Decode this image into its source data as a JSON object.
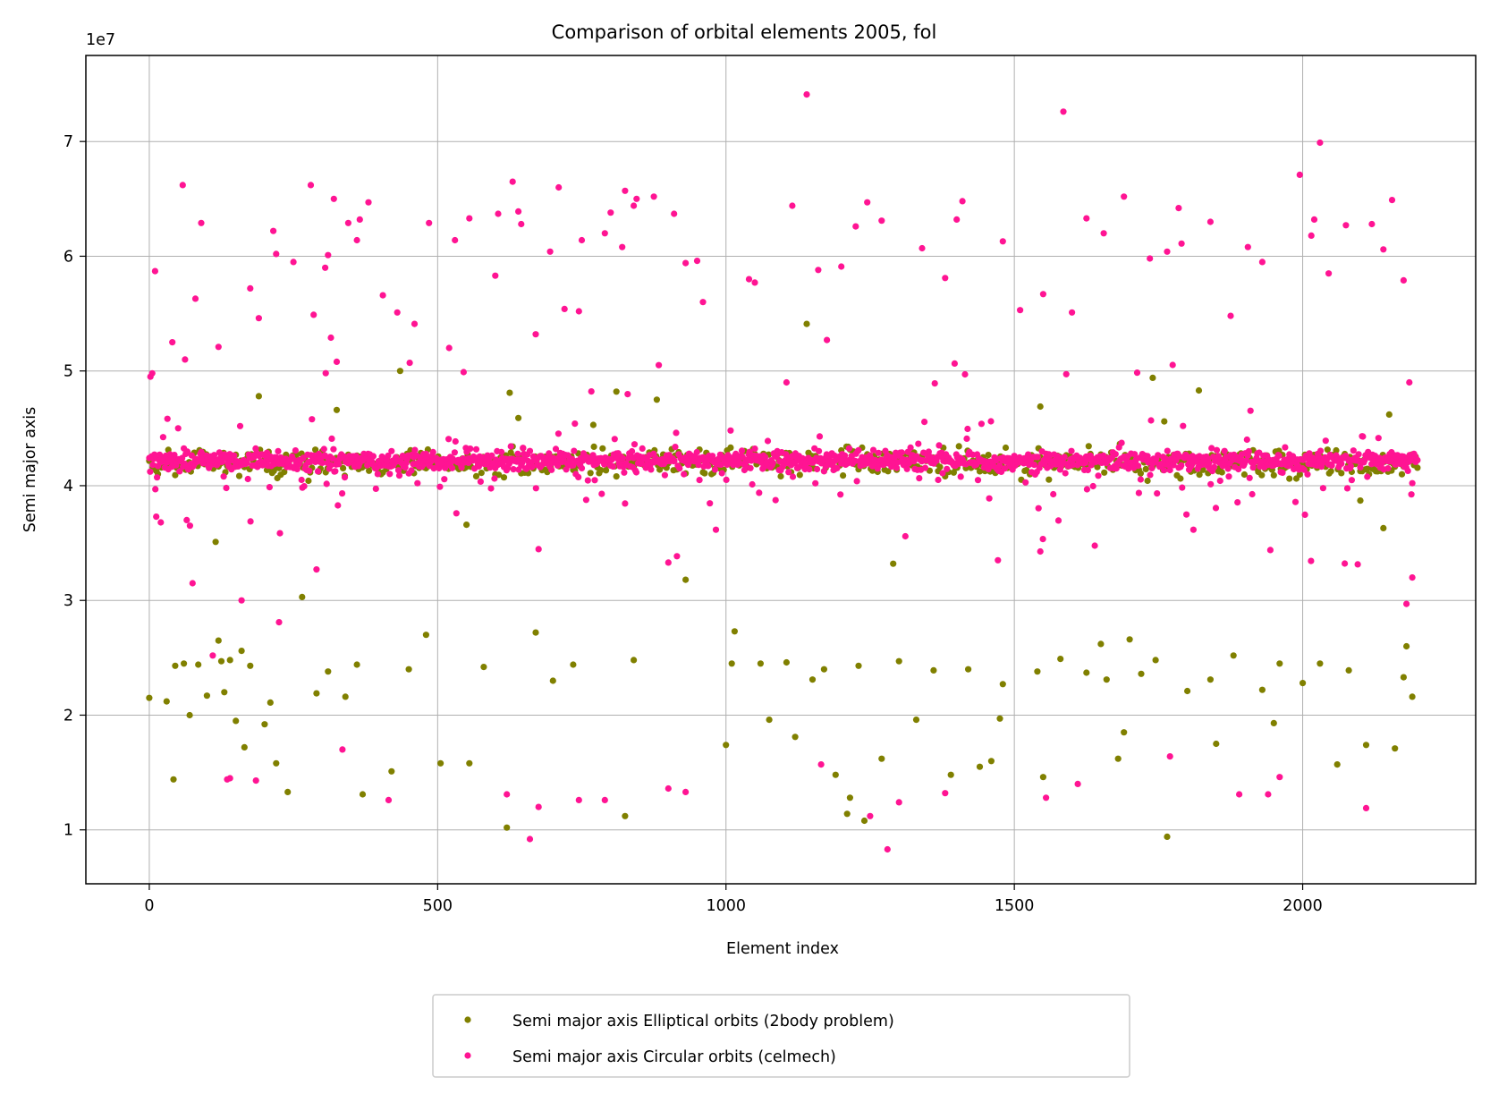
{
  "chart_data": {
    "type": "scatter",
    "title": "Comparison of orbital elements 2005, fol",
    "xlabel": "Element index",
    "ylabel": "Semi major axis",
    "y_offset_label": "1e7",
    "xlim": [
      -110,
      2300
    ],
    "ylim": [
      5300000,
      77500000
    ],
    "xticks": [
      0,
      500,
      1000,
      1500,
      2000
    ],
    "xtick_labels": [
      "0",
      "500",
      "1000",
      "1500",
      "2000"
    ],
    "yticks": [
      10000000,
      20000000,
      30000000,
      40000000,
      50000000,
      60000000,
      70000000
    ],
    "ytick_labels": [
      "1",
      "2",
      "3",
      "4",
      "5",
      "6",
      "7"
    ],
    "grid": true,
    "legend_position": "below plot, centered",
    "n_points_per_series": 2200,
    "series": [
      {
        "name": "Semi major axis Elliptical orbits (2body problem)",
        "color": "#808000",
        "points": [
          [
            0,
            21500000
          ],
          [
            30,
            21200000
          ],
          [
            42,
            14400000
          ],
          [
            45,
            24300000
          ],
          [
            60,
            24500000
          ],
          [
            70,
            20000000
          ],
          [
            85,
            24400000
          ],
          [
            100,
            21700000
          ],
          [
            115,
            35100000
          ],
          [
            120,
            26500000
          ],
          [
            125,
            24700000
          ],
          [
            130,
            22000000
          ],
          [
            140,
            24800000
          ],
          [
            150,
            19500000
          ],
          [
            160,
            25600000
          ],
          [
            165,
            17200000
          ],
          [
            175,
            24300000
          ],
          [
            190,
            47800000
          ],
          [
            200,
            19200000
          ],
          [
            210,
            21100000
          ],
          [
            220,
            15800000
          ],
          [
            240,
            13300000
          ],
          [
            265,
            30300000
          ],
          [
            290,
            21900000
          ],
          [
            310,
            23800000
          ],
          [
            325,
            46600000
          ],
          [
            340,
            21600000
          ],
          [
            360,
            24400000
          ],
          [
            370,
            13100000
          ],
          [
            420,
            15100000
          ],
          [
            435,
            50000000
          ],
          [
            450,
            24000000
          ],
          [
            480,
            27000000
          ],
          [
            505,
            15800000
          ],
          [
            550,
            36600000
          ],
          [
            555,
            15800000
          ],
          [
            580,
            24200000
          ],
          [
            620,
            10200000
          ],
          [
            625,
            48100000
          ],
          [
            640,
            45900000
          ],
          [
            670,
            27200000
          ],
          [
            700,
            23000000
          ],
          [
            735,
            24400000
          ],
          [
            770,
            45300000
          ],
          [
            810,
            48200000
          ],
          [
            825,
            11200000
          ],
          [
            840,
            24800000
          ],
          [
            880,
            47500000
          ],
          [
            930,
            31800000
          ],
          [
            1000,
            17400000
          ],
          [
            1010,
            24500000
          ],
          [
            1015,
            27300000
          ],
          [
            1060,
            24500000
          ],
          [
            1075,
            19600000
          ],
          [
            1105,
            24600000
          ],
          [
            1120,
            18100000
          ],
          [
            1140,
            54100000
          ],
          [
            1150,
            23100000
          ],
          [
            1170,
            24000000
          ],
          [
            1190,
            14800000
          ],
          [
            1210,
            11400000
          ],
          [
            1215,
            12800000
          ],
          [
            1230,
            24300000
          ],
          [
            1240,
            10800000
          ],
          [
            1270,
            16200000
          ],
          [
            1290,
            33200000
          ],
          [
            1300,
            24700000
          ],
          [
            1330,
            19600000
          ],
          [
            1360,
            23900000
          ],
          [
            1390,
            14800000
          ],
          [
            1420,
            24000000
          ],
          [
            1440,
            15500000
          ],
          [
            1460,
            16000000
          ],
          [
            1475,
            19700000
          ],
          [
            1480,
            22700000
          ],
          [
            1540,
            23800000
          ],
          [
            1545,
            46900000
          ],
          [
            1550,
            14600000
          ],
          [
            1580,
            24900000
          ],
          [
            1625,
            23700000
          ],
          [
            1650,
            26200000
          ],
          [
            1660,
            23100000
          ],
          [
            1680,
            16200000
          ],
          [
            1690,
            18500000
          ],
          [
            1700,
            26600000
          ],
          [
            1720,
            23600000
          ],
          [
            1740,
            49400000
          ],
          [
            1745,
            24800000
          ],
          [
            1760,
            45600000
          ],
          [
            1765,
            9400000
          ],
          [
            1800,
            22100000
          ],
          [
            1820,
            48300000
          ],
          [
            1840,
            23100000
          ],
          [
            1850,
            17500000
          ],
          [
            1880,
            25200000
          ],
          [
            1930,
            22200000
          ],
          [
            1950,
            19300000
          ],
          [
            1960,
            24500000
          ],
          [
            2000,
            22800000
          ],
          [
            2030,
            24500000
          ],
          [
            2060,
            15700000
          ],
          [
            2080,
            23900000
          ],
          [
            2100,
            38700000
          ],
          [
            2110,
            17400000
          ],
          [
            2140,
            36300000
          ],
          [
            2150,
            46200000
          ],
          [
            2160,
            17100000
          ],
          [
            2175,
            23300000
          ],
          [
            2180,
            26000000
          ],
          [
            2190,
            21600000
          ]
        ]
      },
      {
        "name": "Semi major axis Circular orbits (celmech)",
        "color": "#ff1493",
        "points": [
          [
            2,
            49500000
          ],
          [
            5,
            49800000
          ],
          [
            10,
            58700000
          ],
          [
            12,
            37300000
          ],
          [
            20,
            36800000
          ],
          [
            40,
            52500000
          ],
          [
            50,
            45000000
          ],
          [
            58,
            66200000
          ],
          [
            62,
            51000000
          ],
          [
            65,
            37000000
          ],
          [
            75,
            31500000
          ],
          [
            80,
            56300000
          ],
          [
            90,
            62900000
          ],
          [
            110,
            25200000
          ],
          [
            120,
            52100000
          ],
          [
            135,
            14400000
          ],
          [
            160,
            30000000
          ],
          [
            175,
            57200000
          ],
          [
            190,
            54600000
          ],
          [
            215,
            62200000
          ],
          [
            220,
            60200000
          ],
          [
            225,
            28100000
          ],
          [
            250,
            59500000
          ],
          [
            280,
            66200000
          ],
          [
            285,
            54900000
          ],
          [
            290,
            32700000
          ],
          [
            305,
            59000000
          ],
          [
            310,
            60100000
          ],
          [
            315,
            52900000
          ],
          [
            320,
            65000000
          ],
          [
            325,
            50800000
          ],
          [
            335,
            17000000
          ],
          [
            345,
            62900000
          ],
          [
            360,
            61400000
          ],
          [
            365,
            63200000
          ],
          [
            380,
            64700000
          ],
          [
            405,
            56600000
          ],
          [
            415,
            12600000
          ],
          [
            430,
            55100000
          ],
          [
            460,
            54100000
          ],
          [
            485,
            62900000
          ],
          [
            520,
            52000000
          ],
          [
            530,
            61400000
          ],
          [
            545,
            49900000
          ],
          [
            555,
            63300000
          ],
          [
            600,
            58300000
          ],
          [
            605,
            63700000
          ],
          [
            630,
            66500000
          ],
          [
            640,
            63900000
          ],
          [
            645,
            62800000
          ],
          [
            660,
            9200000
          ],
          [
            670,
            53200000
          ],
          [
            695,
            60400000
          ],
          [
            710,
            66000000
          ],
          [
            720,
            55400000
          ],
          [
            745,
            55200000
          ],
          [
            750,
            61400000
          ],
          [
            790,
            62000000
          ],
          [
            800,
            63800000
          ],
          [
            820,
            60800000
          ],
          [
            825,
            65700000
          ],
          [
            840,
            64400000
          ],
          [
            845,
            65000000
          ],
          [
            875,
            65200000
          ],
          [
            910,
            63700000
          ],
          [
            930,
            59400000
          ],
          [
            950,
            59600000
          ],
          [
            960,
            56000000
          ],
          [
            1040,
            58000000
          ],
          [
            1050,
            57700000
          ],
          [
            1105,
            49000000
          ],
          [
            1115,
            64400000
          ],
          [
            1140,
            74100000
          ],
          [
            1160,
            58800000
          ],
          [
            1175,
            52700000
          ],
          [
            1200,
            59100000
          ],
          [
            1225,
            62600000
          ],
          [
            1245,
            64700000
          ],
          [
            1270,
            63100000
          ],
          [
            1280,
            8300000
          ],
          [
            1340,
            60700000
          ],
          [
            1380,
            58100000
          ],
          [
            1400,
            63200000
          ],
          [
            1410,
            64800000
          ],
          [
            1480,
            61300000
          ],
          [
            1510,
            55300000
          ],
          [
            1550,
            56700000
          ],
          [
            1585,
            72600000
          ],
          [
            1600,
            55100000
          ],
          [
            1625,
            63300000
          ],
          [
            1655,
            62000000
          ],
          [
            1690,
            65200000
          ],
          [
            1735,
            59800000
          ],
          [
            1765,
            60400000
          ],
          [
            1785,
            64200000
          ],
          [
            1790,
            61100000
          ],
          [
            1840,
            63000000
          ],
          [
            1875,
            54800000
          ],
          [
            1905,
            60800000
          ],
          [
            1930,
            59500000
          ],
          [
            1995,
            67100000
          ],
          [
            2015,
            61800000
          ],
          [
            2020,
            63200000
          ],
          [
            2030,
            69900000
          ],
          [
            2045,
            58500000
          ],
          [
            2075,
            62700000
          ],
          [
            2120,
            62800000
          ],
          [
            2140,
            60600000
          ],
          [
            2155,
            64900000
          ],
          [
            2175,
            57900000
          ],
          [
            2185,
            49000000
          ],
          [
            2190,
            32000000
          ],
          [
            2180,
            29700000
          ],
          [
            2110,
            11900000
          ],
          [
            1960,
            14600000
          ],
          [
            1940,
            13100000
          ],
          [
            1890,
            13100000
          ],
          [
            1770,
            16400000
          ],
          [
            1610,
            14000000
          ],
          [
            1555,
            12800000
          ],
          [
            1380,
            13200000
          ],
          [
            1300,
            12400000
          ],
          [
            1250,
            11200000
          ],
          [
            1165,
            15700000
          ],
          [
            930,
            13300000
          ],
          [
            900,
            13600000
          ],
          [
            790,
            12600000
          ],
          [
            745,
            12600000
          ],
          [
            675,
            12000000
          ],
          [
            620,
            13100000
          ],
          [
            185,
            14300000
          ],
          [
            140,
            14500000
          ]
        ]
      }
    ]
  }
}
